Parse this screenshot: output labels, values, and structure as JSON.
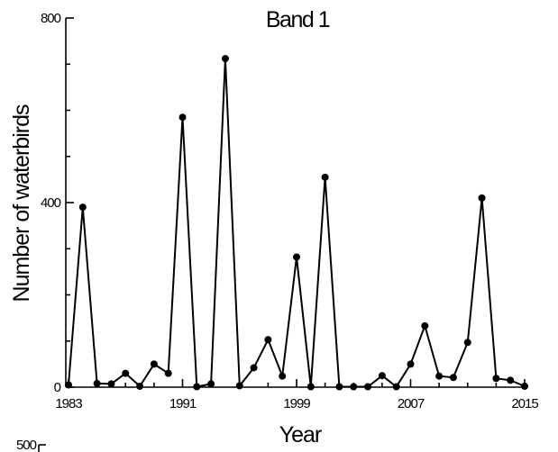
{
  "chart_data": {
    "type": "line",
    "title": "Band 1",
    "xlabel": "Year",
    "ylabel": "Number of waterbirds",
    "xlim": [
      1983,
      2015
    ],
    "ylim": [
      0,
      800
    ],
    "xticks": [
      1983,
      1991,
      1999,
      2007,
      2015
    ],
    "yticks": [
      0,
      400,
      800
    ],
    "marker": "circle",
    "color": "#000000",
    "series": [
      {
        "x": [
          1983,
          1984,
          1985,
          1986,
          1987,
          1988,
          1989,
          1990,
          1991,
          1992,
          1993,
          1994,
          1995,
          1996,
          1997,
          1998,
          1999,
          2000,
          2001,
          2002,
          2003,
          2004,
          2005,
          2006,
          2007,
          2008,
          2009,
          2010,
          2011,
          2012,
          2013,
          2014,
          2015
        ],
        "values": [
          5,
          390,
          8,
          7,
          30,
          2,
          50,
          30,
          585,
          1,
          7,
          712,
          3,
          42,
          103,
          24,
          282,
          1,
          455,
          1,
          1,
          1,
          25,
          1,
          50,
          133,
          24,
          21,
          97,
          410,
          19,
          15,
          2
        ]
      }
    ],
    "next_panel_tick": "500"
  }
}
